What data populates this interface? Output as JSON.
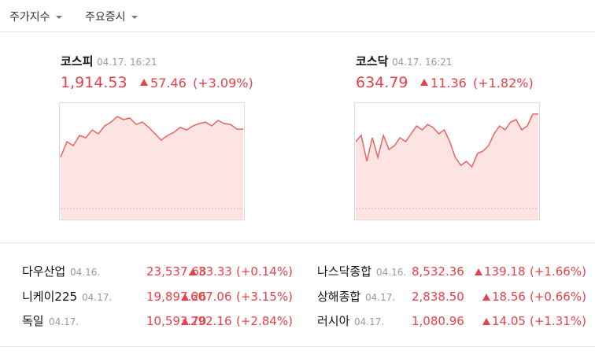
{
  "tabs": [
    "주가지수",
    "주요증시"
  ],
  "indices": [
    {
      "name": "코스피",
      "date": "04.17. 16:21",
      "value": "1,914.53",
      "change": "57.46",
      "percent": "(+3.09%)",
      "sparkline": {
        "ylim": [
          1857,
          1934
        ],
        "values": [
          1894.1,
          1905.5,
          1902.6,
          1910.0,
          1908.3,
          1914.0,
          1911.2,
          1916.9,
          1919.7,
          1923.7,
          1921.5,
          1922.6,
          1918.0,
          1919.7,
          1915.8,
          1911.2,
          1906.6,
          1910.0,
          1912.3,
          1915.8,
          1914.0,
          1916.9,
          1918.6,
          1919.7,
          1916.9,
          1920.9,
          1918.6,
          1918.0,
          1914.6,
          1914.53
        ]
      }
    },
    {
      "name": "코스닥",
      "date": "04.17. 16:21",
      "value": "634.79",
      "change": "11.36",
      "percent": "(+1.82%)",
      "sparkline": {
        "ylim": [
          623.4,
          636.2
        ],
        "values": [
          631.46,
          632.22,
          629.09,
          631.93,
          629.56,
          632.22,
          630.51,
          630.98,
          631.93,
          631.46,
          632.41,
          633.35,
          632.88,
          633.54,
          633.16,
          632.41,
          632.88,
          631.46,
          629.56,
          628.61,
          629.09,
          628.42,
          630.04,
          630.32,
          630.98,
          632.41,
          633.35,
          632.88,
          633.83,
          634.11,
          632.88,
          633.35,
          634.78,
          634.79
        ]
      }
    }
  ],
  "markets": [
    {
      "name": "다우산업",
      "date": "04.16.",
      "value": "23,537.68",
      "change": "33.33",
      "percent": "(+0.14%)"
    },
    {
      "name": "니케이225",
      "date": "04.17.",
      "value": "19,897.26",
      "change": "607.06",
      "percent": "(+3.15%)"
    },
    {
      "name": "독일",
      "date": "04.17.",
      "value": "10,593.70",
      "change": "292.16",
      "percent": "(+2.84%)"
    },
    {
      "name": "나스닥종합",
      "date": "04.16.",
      "value": "8,532.36",
      "change": "139.18",
      "percent": "(+1.66%)"
    },
    {
      "name": "상해종합",
      "date": "04.17.",
      "value": "2,838.50",
      "change": "18.56",
      "percent": "(+0.66%)"
    },
    {
      "name": "러시아",
      "date": "04.17.",
      "value": "1,080.96",
      "change": "14.05",
      "percent": "(+1.31%)"
    }
  ]
}
